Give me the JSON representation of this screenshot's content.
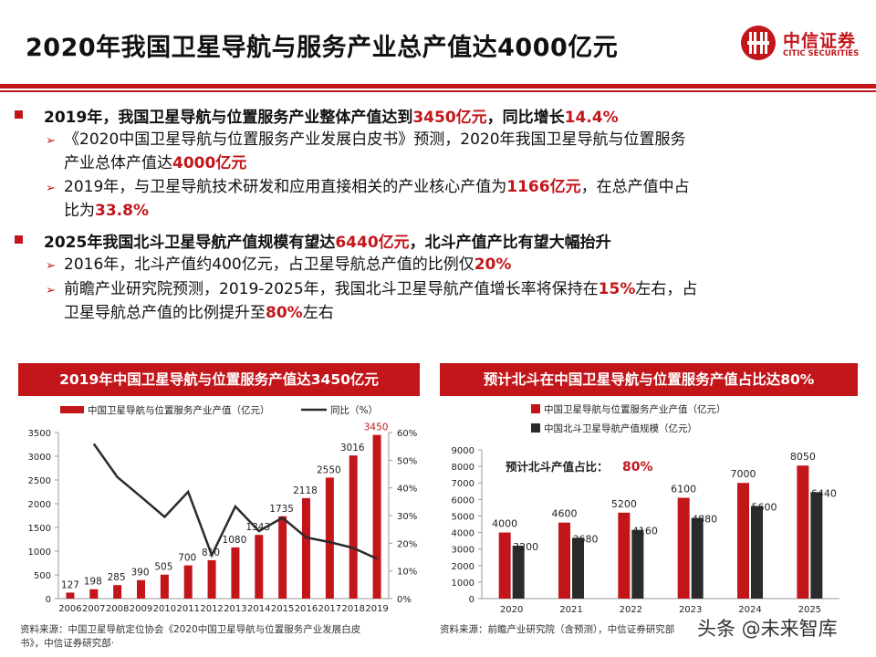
{
  "title": "2020年我国卫星导航与服务产业总产值达4000亿元",
  "logo": {
    "cn": "中信证券",
    "en": "CITIC SECURITIES"
  },
  "bullets": [
    {
      "parts": [
        "2019年，我国卫星导航与位置服务产业整体产值达到",
        "3450亿元",
        "，同比增长",
        "14.4%"
      ]
    },
    {
      "line1": "《2020中国卫星导航与位置服务产业发展白皮书》预测，2020年我国卫星导航与位置服务",
      "line2a": "产业总体产值达",
      "line2b": "4000亿元"
    },
    {
      "line1a": "2019年，与卫星导航技术研发和应用直接相关的产业核心产值为",
      "line1b": "1166亿元",
      "line1c": "，在总产值中占",
      "line2a": "比为",
      "line2b": "33.8%"
    },
    {
      "parts": [
        "2025年我国北斗卫星导航产值规模有望达",
        "6440亿元",
        "，北斗产值产比有望大幅抬升"
      ]
    },
    {
      "a": "2016年，北斗产值约400亿元，占卫星导航总产值的比例仅",
      "b": "20%"
    },
    {
      "line1a": "前瞻产业研究院预测，2019-2025年，我国北斗卫星导航产值增长率将保持在",
      "line1b": "15%",
      "line1c": "左右，占",
      "line2a": "卫星导航总产值的比例提升至",
      "line2b": "80%",
      "line2c": "左右"
    }
  ],
  "panel_left": {
    "header": "2019年中国卫星导航与位置服务产值达3450亿元",
    "source_line1": "资料来源：中国卫星导航定位协会《2020中国卫星导航与位置服务产业发展白皮",
    "source_line2": "书》，中信证券研究部·"
  },
  "panel_right": {
    "header": "预计北斗在中国卫星导航与位置服务产值占比达80%",
    "annotation_label": "预计北斗产值占比：",
    "annotation_value": "80%",
    "source": "资料来源：前瞻产业研究院（含预测），中信证券研究部"
  },
  "watermark": "头条 @未来智库",
  "colors": {
    "accent": "#c2161b",
    "dark": "#2b2b2b"
  },
  "chart_data": [
    {
      "type": "bar",
      "categories": [
        "2006",
        "2007",
        "2008",
        "2009",
        "2010",
        "2011",
        "2012",
        "2013",
        "2014",
        "2015",
        "2016",
        "2017",
        "2018",
        "2019"
      ],
      "series": [
        {
          "name": "中国卫星导航与位置服务产业产值（亿元）",
          "type": "bar",
          "axis": "left",
          "values": [
            127,
            198,
            285,
            390,
            505,
            700,
            810,
            1080,
            1343,
            1735,
            2118,
            2550,
            3016,
            3450
          ]
        },
        {
          "name": "同比（%）",
          "type": "line",
          "axis": "right",
          "values": [
            null,
            55.9,
            43.9,
            36.8,
            29.5,
            38.6,
            15.7,
            33.3,
            24.4,
            29.2,
            22.1,
            20.4,
            18.3,
            14.4
          ]
        }
      ],
      "ylim": [
        0,
        3500
      ],
      "yticks": [
        "0",
        "500",
        "1000",
        "1500",
        "2000",
        "2500",
        "3000",
        "3500"
      ],
      "y2lim": [
        0,
        60
      ],
      "y2ticks": [
        "0%",
        "10%",
        "20%",
        "30%",
        "40%",
        "50%",
        "60%"
      ],
      "legend": "top",
      "grid": false
    },
    {
      "type": "bar",
      "categories": [
        "2020",
        "2021",
        "2022",
        "2023",
        "2024",
        "2025"
      ],
      "series": [
        {
          "name": "中国卫星导航与位置服务产业产值（亿元）",
          "values": [
            4000,
            4600,
            5200,
            6100,
            7000,
            8050
          ]
        },
        {
          "name": "中国北斗卫星导航产值规模（亿元）",
          "values": [
            3200,
            3680,
            4160,
            4880,
            5600,
            6440
          ]
        }
      ],
      "ylim": [
        0,
        9000
      ],
      "yticks": [
        "0",
        "1000",
        "2000",
        "3000",
        "4000",
        "5000",
        "6000",
        "7000",
        "8000",
        "9000"
      ],
      "legend": "top-left",
      "grid": false
    }
  ]
}
